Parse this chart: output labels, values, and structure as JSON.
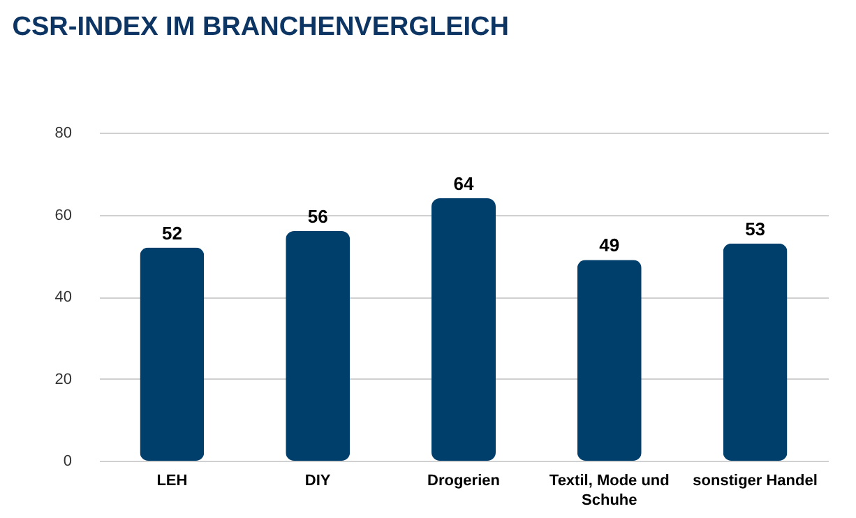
{
  "chart_data": {
    "type": "bar",
    "title": "CSR-INDEX IM BRANCHENVERGLEICH",
    "categories": [
      "LEH",
      "DIY",
      "Drogerien",
      "Textil, Mode und Schuhe",
      "sonstiger Handel"
    ],
    "values": [
      52,
      56,
      64,
      49,
      53
    ],
    "color": "#003f6c",
    "ylim": [
      0,
      80
    ],
    "yticks": [
      0,
      20,
      40,
      60,
      80
    ],
    "grid": "y",
    "data_labels": true
  }
}
